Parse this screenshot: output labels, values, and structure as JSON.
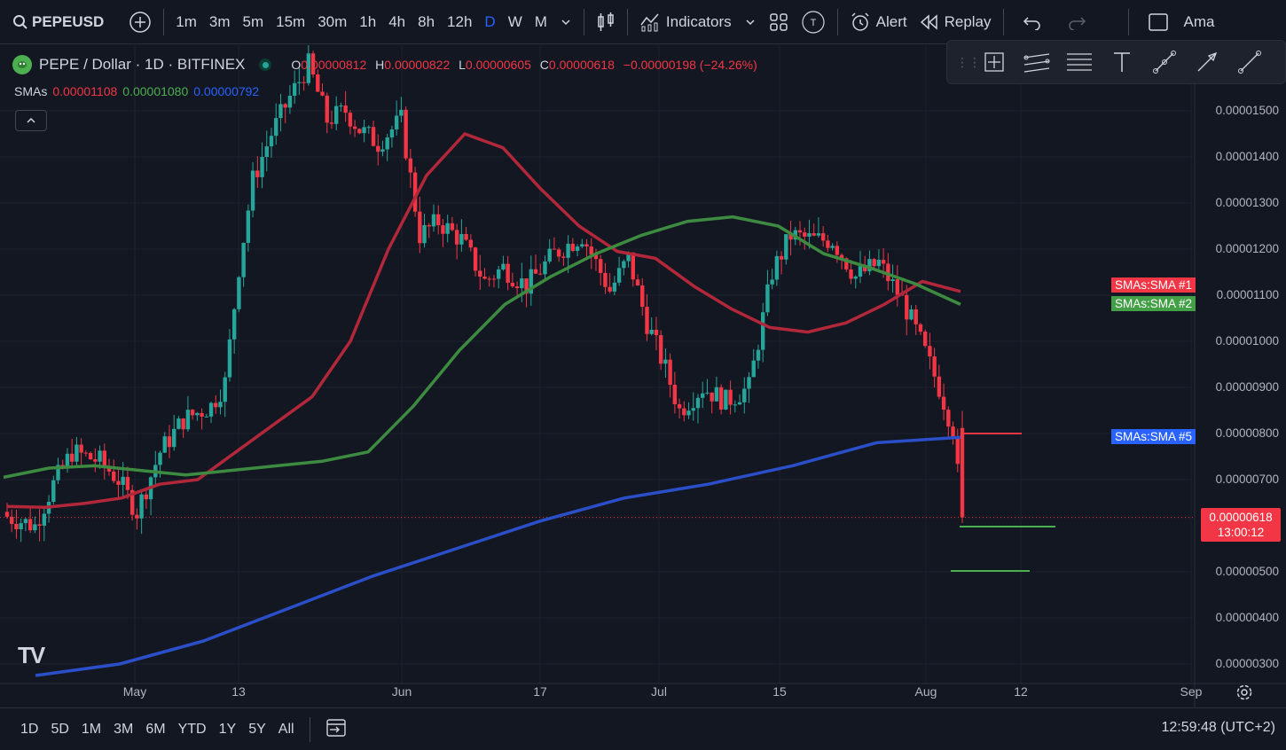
{
  "toolbar": {
    "symbol": "PEPEUSD",
    "intervals": [
      "1m",
      "3m",
      "5m",
      "15m",
      "30m",
      "1h",
      "4h",
      "8h",
      "12h",
      "D",
      "W",
      "M"
    ],
    "active_interval": "D",
    "indicators_label": "Indicators",
    "alert_label": "Alert",
    "replay_label": "Replay",
    "truncated_label": "Ama",
    "indicator_template_badge": "T"
  },
  "legend": {
    "title": "PEPE / Dollar · 1D · BITFINEX",
    "o_label": "O",
    "o_value": "0.00000812",
    "h_label": "H",
    "h_value": "0.00000822",
    "l_label": "L",
    "l_value": "0.00000605",
    "c_label": "C",
    "c_value": "0.00000618",
    "change": "−0.00000198 (−24.26%)"
  },
  "sma_legend": {
    "label": "SMAs",
    "sma1": "0.00001108",
    "sma2": "0.00001080",
    "sma5": "0.00000792"
  },
  "price_axis": {
    "labels": [
      "0.00001500",
      "0.00001400",
      "0.00001300",
      "0.00001200",
      "0.00001100",
      "0.00001000",
      "0.00000900",
      "0.00000800",
      "0.00000700",
      "0.00000500",
      "0.00000400",
      "0.00000300"
    ],
    "current_price": "0.00000618",
    "countdown": "13:00:12"
  },
  "tags": {
    "sma1": "SMAs:SMA #1",
    "sma2": "SMAs:SMA #2",
    "sma5": "SMAs:SMA #5"
  },
  "date_axis": [
    "May",
    "13",
    "Jun",
    "17",
    "Jul",
    "15",
    "Aug",
    "12",
    "Sep"
  ],
  "bottom": {
    "ranges": [
      "1D",
      "5D",
      "1M",
      "3M",
      "6M",
      "YTD",
      "1Y",
      "5Y",
      "All"
    ],
    "clock": "12:59:48 (UTC+2)"
  },
  "colors": {
    "up": "#26a69a",
    "down": "#f23645",
    "sma1": "#b2283a",
    "sma2": "#3d8b40",
    "sma5": "#2a4fc8",
    "accent": "#2962ff"
  },
  "chart_data": {
    "type": "candlestick",
    "symbol": "PEPE / Dollar · 1D · BITFINEX",
    "ylim": [
      2.7e-06,
      1.64e-05
    ],
    "x_ticks": [
      "May",
      "13",
      "Jun",
      "17",
      "Jul",
      "15",
      "Aug",
      "12",
      "Sep"
    ],
    "series": [
      {
        "name": "SMA #1",
        "values": [
          6.42e-06,
          6.4e-06,
          6.48e-06,
          6.6e-06,
          6.9e-06,
          7e-06,
          7.6e-06,
          8.2e-06,
          8.8e-06,
          1e-05,
          1.2e-05,
          1.36e-05,
          1.45e-05,
          1.42e-05,
          1.33e-05,
          1.25e-05,
          1.195e-05,
          1.18e-05,
          1.12e-05,
          1.07e-05,
          1.03e-05,
          1.02e-05,
          1.04e-05,
          1.08e-05,
          1.13e-05,
          1.108e-05
        ]
      },
      {
        "name": "SMA #2",
        "values": [
          7.05e-06,
          7.25e-06,
          7.3e-06,
          7.2e-06,
          7.1e-06,
          7.2e-06,
          7.3e-06,
          7.4e-06,
          7.6e-06,
          8.6e-06,
          9.8e-06,
          1.08e-05,
          1.14e-05,
          1.19e-05,
          1.23e-05,
          1.26e-05,
          1.27e-05,
          1.25e-05,
          1.19e-05,
          1.16e-05,
          1.125e-05,
          1.08e-05
        ]
      },
      {
        "name": "SMA #5",
        "values": [
          2.75e-06,
          3e-06,
          3.5e-06,
          4.2e-06,
          4.9e-06,
          5.5e-06,
          6.1e-06,
          6.6e-06,
          6.9e-06,
          7.3e-06,
          7.8e-06,
          7.92e-06
        ]
      }
    ]
  }
}
